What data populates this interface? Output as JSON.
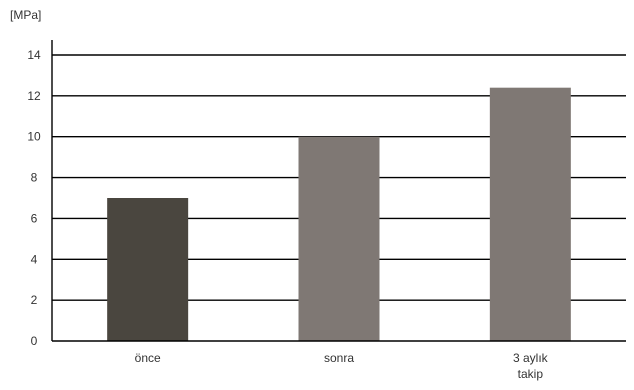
{
  "chart_data": {
    "type": "bar",
    "unit_label": "[MPa]",
    "categories": [
      [
        "önce"
      ],
      [
        "sonra"
      ],
      [
        "3 aylık",
        "takip"
      ]
    ],
    "values": [
      7.0,
      10.0,
      12.4
    ],
    "bar_colors": [
      "#4a463f",
      "#7f7874",
      "#7f7874"
    ],
    "ylim": [
      0,
      14
    ],
    "yticks": [
      0,
      2,
      4,
      6,
      8,
      10,
      12,
      14
    ],
    "grid": true,
    "grid_color": "#000000",
    "axis_color": "#000000"
  }
}
